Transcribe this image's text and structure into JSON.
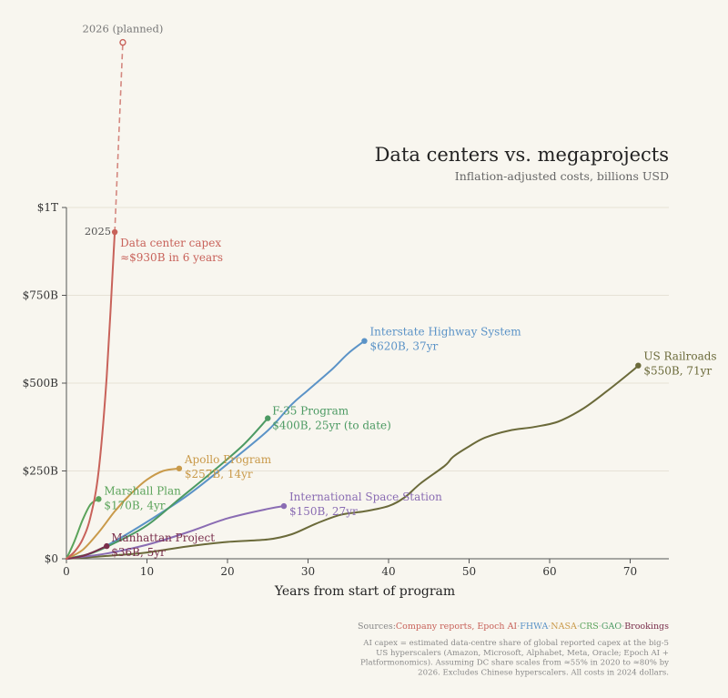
{
  "chart_data": {
    "type": "line",
    "title": "Data centers vs. megaprojects",
    "subtitle": "Inflation-adjusted costs, billions USD",
    "xlabel": "Years from start of program",
    "ylabel": "",
    "xlim": [
      0,
      75
    ],
    "ylim": [
      0,
      1000
    ],
    "x_ticks": [
      0,
      10,
      20,
      30,
      40,
      50,
      60,
      70
    ],
    "y_ticks": [
      {
        "value": 0,
        "label": "$0"
      },
      {
        "value": 250,
        "label": "$250B"
      },
      {
        "value": 500,
        "label": "$500B"
      },
      {
        "value": 750,
        "label": "$750B"
      },
      {
        "value": 1000,
        "label": "$1T"
      }
    ],
    "grid": "horizontal",
    "series": [
      {
        "name": "US Railroads",
        "value_label": "$550B, 71yr",
        "color": "#6b6a3a",
        "x": [
          0,
          5,
          10,
          15,
          20,
          25,
          28,
          31,
          34,
          37,
          40,
          42,
          44,
          47,
          48,
          50,
          52,
          55,
          58,
          61,
          64,
          67,
          70,
          71
        ],
        "y": [
          0,
          8,
          18,
          35,
          48,
          55,
          70,
          100,
          125,
          135,
          150,
          175,
          215,
          265,
          290,
          320,
          345,
          365,
          375,
          390,
          425,
          475,
          530,
          550
        ]
      },
      {
        "name": "Interstate Highway System",
        "value_label": "$620B, 37yr",
        "color": "#5b93c7",
        "x": [
          0,
          3,
          6,
          10,
          15,
          20,
          25,
          28,
          30,
          33,
          35,
          37
        ],
        "y": [
          0,
          15,
          50,
          105,
          180,
          270,
          365,
          440,
          480,
          540,
          585,
          620
        ]
      },
      {
        "name": "F-35 Program",
        "value_label": "$400B, 25yr (to date)",
        "color": "#4c9a63",
        "x": [
          0,
          3,
          6,
          10,
          14,
          18,
          22,
          25
        ],
        "y": [
          0,
          15,
          45,
          95,
          170,
          245,
          325,
          400
        ]
      },
      {
        "name": "International Space Station",
        "value_label": "$150B, 27yr",
        "color": "#8a6cb3",
        "x": [
          0,
          5,
          10,
          15,
          20,
          25,
          27
        ],
        "y": [
          0,
          15,
          40,
          75,
          115,
          142,
          150
        ]
      },
      {
        "name": "Apollo Program",
        "value_label": "$257B, 14yr",
        "color": "#c99a4a",
        "x": [
          0,
          2,
          4,
          6,
          8,
          10,
          12,
          14
        ],
        "y": [
          0,
          25,
          75,
          135,
          185,
          225,
          250,
          257
        ]
      },
      {
        "name": "Marshall Plan",
        "value_label": "$170B, 4yr",
        "color": "#5aa35a",
        "x": [
          0,
          1,
          2,
          3,
          4
        ],
        "y": [
          0,
          50,
          110,
          155,
          170
        ]
      },
      {
        "name": "Manhattan Project",
        "value_label": "$36B, 5yr",
        "color": "#7a2f4c",
        "x": [
          0,
          1,
          2,
          3,
          4,
          5
        ],
        "y": [
          0,
          3,
          8,
          16,
          26,
          36
        ]
      },
      {
        "name": "Data center capex",
        "value_label": "≈$930B in 6 years",
        "color": "#c8625a",
        "x": [
          0,
          1,
          2,
          3,
          4,
          5,
          6
        ],
        "y": [
          0,
          20,
          55,
          120,
          250,
          520,
          930
        ],
        "point_label": "2025",
        "projection": {
          "label": "2026 (planned)",
          "x": 7,
          "y": 1470
        }
      }
    ],
    "sources": {
      "prefix": "Sources:",
      "items": [
        {
          "text": "Company reports, Epoch AI",
          "color": "#c8625a"
        },
        {
          "text": "FHWA",
          "color": "#5b93c7"
        },
        {
          "text": "NASA",
          "color": "#c99a4a"
        },
        {
          "text": "CRS",
          "color": "#5aa35a"
        },
        {
          "text": "GAO",
          "color": "#4c9a63"
        },
        {
          "text": "Brookings",
          "color": "#7a2f4c"
        }
      ],
      "separator": "·"
    },
    "footnote": [
      "AI capex = estimated data-centre share of global reported capex at the big-5",
      "US hyperscalers (Amazon, Microsoft, Alphabet, Meta, Oracle; Epoch AI +",
      "Platformonomics). Assuming DC share scales from ≈55% in 2020 to ≈80% by",
      "2026. Excludes Chinese hyperscalers. All costs in 2024 dollars."
    ]
  }
}
